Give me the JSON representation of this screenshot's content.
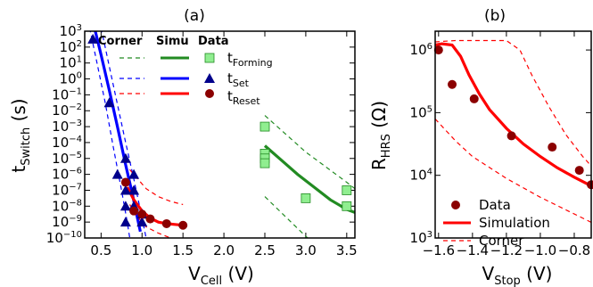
{
  "chart_data": [
    {
      "panel": "(a)",
      "type": "scatter",
      "xlabel": {
        "main": "V",
        "sub": "Cell",
        "unit": " (V)"
      },
      "ylabel": {
        "main": "t",
        "sub": "Switch",
        "unit": " (s)"
      },
      "xlim": [
        0.3,
        3.6
      ],
      "ylim": [
        -10,
        3
      ],
      "y_scale": "log",
      "x_ticks": [
        "0.5",
        "1.0",
        "1.5",
        "2.0",
        "2.5",
        "3.0",
        "3.5"
      ],
      "x_tick_values": [
        0.5,
        1.0,
        1.5,
        2.0,
        2.5,
        3.0,
        3.5
      ],
      "y_ticks": [
        "10^3",
        "10^2",
        "10^1",
        "10^0",
        "10^-1",
        "10^-2",
        "10^-3",
        "10^-4",
        "10^-5",
        "10^-6",
        "10^-7",
        "10^-8",
        "10^-9",
        "10^-10"
      ],
      "y_tick_exponents": [
        3,
        2,
        1,
        0,
        -1,
        -2,
        -3,
        -4,
        -5,
        -6,
        -7,
        -8,
        -9,
        -10
      ],
      "legend": {
        "headers": [
          "Corner",
          "Simu",
          "Data"
        ],
        "entries": [
          {
            "main": "t",
            "sub": "Forming",
            "color": "#228b22",
            "marker": "square",
            "marker_color": "#90ee90"
          },
          {
            "main": "t",
            "sub": "Set",
            "color": "#0000ff",
            "marker": "triangle",
            "marker_color": "#00008b"
          },
          {
            "main": "t",
            "sub": "Reset",
            "color": "#ff0000",
            "marker": "circle",
            "marker_color": "#8b0000"
          }
        ]
      },
      "series": [
        {
          "name": "t_Forming",
          "kind": "data",
          "marker": "square",
          "color": "#90ee90",
          "edge": "#228b22",
          "points": [
            [
              2.5,
              -3
            ],
            [
              2.5,
              -4.7
            ],
            [
              2.5,
              -5
            ],
            [
              2.5,
              -5.3
            ],
            [
              3.0,
              -7.5
            ],
            [
              3.5,
              -7
            ],
            [
              3.5,
              -8
            ]
          ]
        },
        {
          "name": "t_Forming",
          "kind": "simu",
          "color": "#228b22",
          "points": [
            [
              2.5,
              -4.2
            ],
            [
              2.7,
              -5.1
            ],
            [
              2.9,
              -6.0
            ],
            [
              3.1,
              -6.8
            ],
            [
              3.3,
              -7.6
            ],
            [
              3.5,
              -8.2
            ],
            [
              3.6,
              -8.4
            ]
          ]
        },
        {
          "name": "t_Forming",
          "kind": "corner",
          "color": "#228b22",
          "points": [
            [
              2.5,
              -2.3
            ],
            [
              3.0,
              -4.6
            ],
            [
              3.5,
              -6.5
            ],
            [
              3.6,
              -6.9
            ]
          ]
        },
        {
          "name": "t_Forming",
          "kind": "corner",
          "color": "#228b22",
          "points": [
            [
              2.5,
              -7.4
            ],
            [
              3.0,
              -9.9
            ],
            [
              3.1,
              -10.3
            ]
          ]
        },
        {
          "name": "t_Set",
          "kind": "data",
          "marker": "triangle",
          "color": "#00008b",
          "points": [
            [
              0.4,
              2.5
            ],
            [
              0.6,
              -1.5
            ],
            [
              0.7,
              -6
            ],
            [
              0.8,
              -5
            ],
            [
              0.8,
              -7
            ],
            [
              0.8,
              -8
            ],
            [
              0.8,
              -9
            ],
            [
              0.9,
              -6
            ],
            [
              0.9,
              -7
            ],
            [
              0.9,
              -8
            ],
            [
              1.0,
              -8.5
            ],
            [
              1.0,
              -9
            ]
          ]
        },
        {
          "name": "t_Set",
          "kind": "simu",
          "color": "#0000ff",
          "points": [
            [
              0.42,
              3.2
            ],
            [
              0.5,
              1.5
            ],
            [
              0.6,
              -0.7
            ],
            [
              0.7,
              -3.0
            ],
            [
              0.8,
              -5.4
            ],
            [
              0.88,
              -7.2
            ],
            [
              0.95,
              -8.9
            ],
            [
              0.98,
              -9.6
            ]
          ]
        },
        {
          "name": "t_Set",
          "kind": "corner",
          "color": "#0000ff",
          "points": [
            [
              0.36,
              3.2
            ],
            [
              0.45,
              1.0
            ],
            [
              0.55,
              -1.5
            ],
            [
              0.65,
              -4.3
            ],
            [
              0.75,
              -7.0
            ],
            [
              0.82,
              -9.0
            ],
            [
              0.85,
              -10.0
            ]
          ]
        },
        {
          "name": "t_Set",
          "kind": "corner",
          "color": "#0000ff",
          "points": [
            [
              0.5,
              3.2
            ],
            [
              0.6,
              0.8
            ],
            [
              0.7,
              -1.6
            ],
            [
              0.8,
              -4.0
            ],
            [
              0.9,
              -6.3
            ],
            [
              0.97,
              -8.0
            ],
            [
              1.05,
              -10.0
            ]
          ]
        },
        {
          "name": "t_Reset",
          "kind": "data",
          "marker": "circle",
          "color": "#8b0000",
          "points": [
            [
              0.8,
              -6.5
            ],
            [
              0.9,
              -8.3
            ],
            [
              1.0,
              -8.5
            ],
            [
              1.1,
              -8.8
            ],
            [
              1.3,
              -9.1
            ],
            [
              1.5,
              -9.2
            ]
          ]
        },
        {
          "name": "t_Reset",
          "kind": "simu",
          "color": "#ff0000",
          "points": [
            [
              0.82,
              -6.8
            ],
            [
              0.9,
              -7.6
            ],
            [
              1.0,
              -8.3
            ],
            [
              1.1,
              -8.75
            ],
            [
              1.2,
              -9.0
            ],
            [
              1.3,
              -9.1
            ],
            [
              1.4,
              -9.15
            ],
            [
              1.5,
              -9.2
            ]
          ]
        },
        {
          "name": "t_Reset",
          "kind": "corner",
          "color": "#ff0000",
          "points": [
            [
              0.85,
              -5.7
            ],
            [
              0.95,
              -6.3
            ],
            [
              1.05,
              -6.9
            ],
            [
              1.2,
              -7.4
            ],
            [
              1.35,
              -7.7
            ],
            [
              1.5,
              -7.9
            ]
          ]
        },
        {
          "name": "t_Reset",
          "kind": "corner",
          "color": "#ff0000",
          "points": [
            [
              0.85,
              -7.9
            ],
            [
              0.95,
              -8.7
            ],
            [
              1.05,
              -9.3
            ],
            [
              1.2,
              -9.7
            ],
            [
              1.35,
              -10.0
            ],
            [
              1.45,
              -10.1
            ]
          ]
        }
      ]
    },
    {
      "panel": "(b)",
      "type": "scatter",
      "xlabel": {
        "main": "V",
        "sub": "Stop",
        "unit": " (V)"
      },
      "ylabel": {
        "main": "R",
        "sub": "HRS",
        "unit": " (Ω)"
      },
      "xlim": [
        -1.62,
        -0.7
      ],
      "ylim": [
        3,
        6.3
      ],
      "y_scale": "log",
      "x_ticks": [
        "−1.6",
        "−1.4",
        "−1.2",
        "−1.0",
        "−0.8"
      ],
      "x_tick_values": [
        -1.6,
        -1.4,
        -1.2,
        -1.0,
        -0.8
      ],
      "y_ticks": [
        "10^6",
        "10^5",
        "10^4",
        "10^3"
      ],
      "y_tick_exponents": [
        6,
        5,
        4,
        3
      ],
      "legend": {
        "entries": [
          {
            "label": "Data",
            "marker": "circle",
            "color": "#8b0000"
          },
          {
            "label": "Simulation",
            "line": "solid",
            "color": "#ff0000"
          },
          {
            "label": "Corner",
            "line": "dashed",
            "color": "#ff0000"
          }
        ]
      },
      "series": [
        {
          "name": "Data",
          "kind": "data",
          "marker": "circle",
          "color": "#8b0000",
          "points": [
            [
              -1.6,
              6.0
            ],
            [
              -1.52,
              5.45
            ],
            [
              -1.39,
              5.22
            ],
            [
              -1.17,
              4.63
            ],
            [
              -0.93,
              4.45
            ],
            [
              -0.77,
              4.08
            ],
            [
              -0.7,
              3.85
            ]
          ]
        },
        {
          "name": "Simulation",
          "kind": "simu",
          "color": "#ff0000",
          "points": [
            [
              -1.62,
              6.08
            ],
            [
              -1.58,
              6.1
            ],
            [
              -1.52,
              6.08
            ],
            [
              -1.47,
              5.9
            ],
            [
              -1.42,
              5.6
            ],
            [
              -1.36,
              5.3
            ],
            [
              -1.3,
              5.05
            ],
            [
              -1.2,
              4.75
            ],
            [
              -1.1,
              4.5
            ],
            [
              -1.0,
              4.3
            ],
            [
              -0.9,
              4.12
            ],
            [
              -0.8,
              3.97
            ],
            [
              -0.7,
              3.83
            ]
          ]
        },
        {
          "name": "Corner",
          "kind": "corner",
          "color": "#ff0000",
          "points": [
            [
              -1.62,
              6.13
            ],
            [
              -1.5,
              6.15
            ],
            [
              -1.2,
              6.15
            ],
            [
              -1.12,
              6.0
            ],
            [
              -1.05,
              5.6
            ],
            [
              -0.95,
              5.1
            ],
            [
              -0.85,
              4.65
            ],
            [
              -0.75,
              4.3
            ],
            [
              -0.7,
              4.15
            ]
          ]
        },
        {
          "name": "Corner",
          "kind": "corner",
          "color": "#ff0000",
          "points": [
            [
              -1.62,
              4.9
            ],
            [
              -1.5,
              4.55
            ],
            [
              -1.4,
              4.3
            ],
            [
              -1.2,
              3.95
            ],
            [
              -1.0,
              3.65
            ],
            [
              -0.85,
              3.45
            ],
            [
              -0.7,
              3.25
            ]
          ]
        }
      ]
    }
  ]
}
